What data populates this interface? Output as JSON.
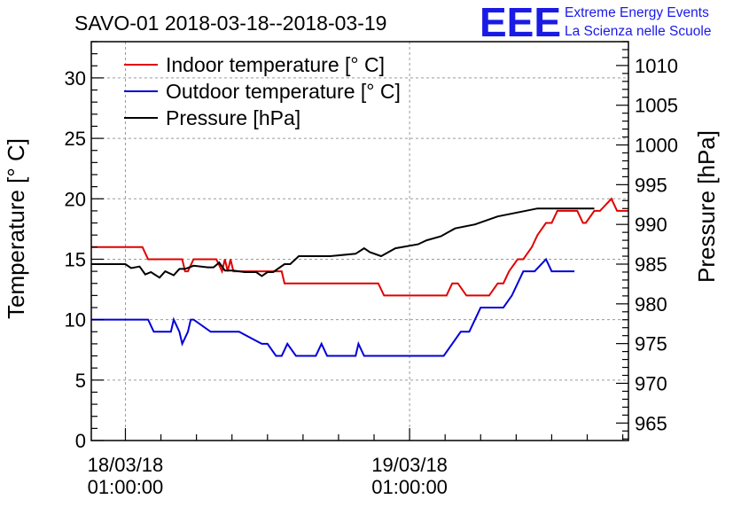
{
  "title": "SAVO-01 2018-03-18--2018-03-19",
  "logo": {
    "mark": "EEE",
    "line1": "Extreme Energy Events",
    "line2": "La Scienza nelle Scuole",
    "color": "#1a1ae6"
  },
  "chart_data": {
    "type": "line",
    "title": "SAVO-01 2018-03-18--2018-03-19",
    "xlabel": "",
    "ylabel": "Temperature [° C]",
    "y2label": "Pressure [hPa]",
    "xlim": [
      -0.12,
      1.77
    ],
    "ylim": [
      0,
      33
    ],
    "y2lim": [
      962.8,
      1013.0
    ],
    "grid": true,
    "legend_position": "top-left",
    "x_ticks": [
      {
        "value": 0,
        "line1": "18/03/18",
        "line2": "01:00:00"
      },
      {
        "value": 1,
        "line1": "19/03/18",
        "line2": "01:00:00"
      }
    ],
    "y_ticks": [
      0,
      5,
      10,
      15,
      20,
      25,
      30
    ],
    "y2_ticks": [
      965,
      970,
      975,
      980,
      985,
      990,
      995,
      1000,
      1005,
      1010
    ],
    "series": [
      {
        "name": "Indoor temperature [° C]",
        "axis": "left",
        "color": "#e00000",
        "x": [
          -0.12,
          0.06,
          0.08,
          0.2,
          0.21,
          0.22,
          0.24,
          0.32,
          0.34,
          0.35,
          0.36,
          0.37,
          0.38,
          0.4,
          0.55,
          0.56,
          0.8,
          0.82,
          0.85,
          0.87,
          0.89,
          0.91,
          0.92,
          0.93,
          0.95,
          1.13,
          1.15,
          1.17,
          1.2,
          1.23,
          1.26,
          1.28,
          1.31,
          1.33,
          1.35,
          1.38,
          1.4,
          1.43,
          1.45,
          1.48,
          1.5,
          1.52,
          1.53,
          1.55,
          1.59,
          1.61,
          1.62,
          1.65,
          1.67,
          1.71,
          1.73,
          1.76,
          1.78,
          1.8,
          1.82
        ],
        "values": [
          16,
          16,
          15,
          15,
          14,
          14,
          15,
          15,
          14,
          15,
          14,
          15,
          14,
          14,
          14,
          13,
          13,
          13,
          13,
          13,
          13,
          12,
          12,
          12,
          12,
          12,
          13,
          13,
          12,
          12,
          12,
          12,
          13,
          13,
          14,
          15,
          15,
          16,
          17,
          18,
          18,
          19,
          19,
          19,
          19,
          18,
          18,
          19,
          19,
          20,
          19,
          19,
          19,
          19,
          19
        ]
      },
      {
        "name": "Outdoor temperature [° C]",
        "axis": "left",
        "color": "#0000d8",
        "x": [
          -0.12,
          0.08,
          0.1,
          0.16,
          0.17,
          0.19,
          0.2,
          0.22,
          0.23,
          0.24,
          0.3,
          0.32,
          0.35,
          0.37,
          0.4,
          0.48,
          0.5,
          0.53,
          0.55,
          0.57,
          0.6,
          0.62,
          0.67,
          0.69,
          0.71,
          0.73,
          0.79,
          0.81,
          0.82,
          0.84,
          0.9,
          0.91,
          0.92,
          0.93,
          1.05,
          1.12,
          1.15,
          1.18,
          1.21,
          1.23,
          1.25,
          1.29,
          1.33,
          1.36,
          1.38,
          1.4,
          1.44,
          1.48,
          1.5,
          1.52,
          1.54,
          1.56,
          1.58
        ],
        "values": [
          10,
          10,
          9,
          9,
          10,
          9,
          8,
          9,
          10,
          10,
          9,
          9,
          9,
          9,
          9,
          8,
          8,
          7,
          7,
          8,
          7,
          7,
          7,
          8,
          7,
          7,
          7,
          7,
          8,
          7,
          7,
          7,
          7,
          7,
          7,
          7,
          8,
          9,
          9,
          10,
          11,
          11,
          11,
          12,
          13,
          14,
          14,
          15,
          14,
          14,
          14,
          14,
          14
        ]
      },
      {
        "name": "Pressure [hPa]",
        "axis": "right",
        "color": "#000000",
        "x": [
          -0.12,
          0.0,
          0.02,
          0.05,
          0.07,
          0.09,
          0.12,
          0.14,
          0.17,
          0.19,
          0.21,
          0.24,
          0.29,
          0.31,
          0.33,
          0.35,
          0.38,
          0.42,
          0.46,
          0.48,
          0.5,
          0.52,
          0.54,
          0.56,
          0.58,
          0.61,
          0.64,
          0.67,
          0.72,
          0.81,
          0.84,
          0.86,
          0.9,
          0.95,
          1.03,
          1.06,
          1.11,
          1.16,
          1.23,
          1.27,
          1.31,
          1.38,
          1.45,
          1.5,
          1.58,
          1.65
        ],
        "values": [
          985,
          985,
          984.5,
          984.7,
          983.7,
          984,
          983.3,
          984.1,
          983.6,
          984.4,
          984.4,
          984.8,
          984.6,
          984.6,
          985.2,
          984.2,
          984.2,
          984,
          984,
          983.5,
          984,
          984,
          984.5,
          985,
          985,
          986,
          986,
          986,
          986,
          986.3,
          987,
          986.5,
          986,
          987,
          987.5,
          988,
          988.5,
          989.5,
          990,
          990.5,
          991,
          991.5,
          992,
          992,
          992,
          992
        ]
      }
    ]
  }
}
